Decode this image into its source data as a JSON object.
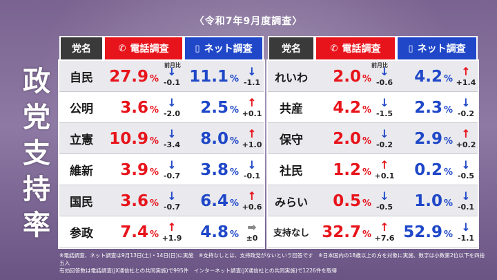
{
  "survey_date": "〈令和7年9月度調査〉",
  "title_chars": [
    "政",
    "党",
    "支",
    "持",
    "率"
  ],
  "headers": {
    "party": "党名",
    "phone": "電話調査",
    "net": "ネット調査"
  },
  "prev_month_label": "前月比",
  "left": [
    {
      "name": "自民",
      "phone": "27.9",
      "phone_dir": "down",
      "phone_delta": "-0.1",
      "net": "11.1",
      "net_dir": "down",
      "net_delta": "-1.1"
    },
    {
      "name": "公明",
      "phone": "3.6",
      "phone_dir": "down",
      "phone_delta": "-2.0",
      "net": "2.5",
      "net_dir": "up",
      "net_delta": "+0.1"
    },
    {
      "name": "立憲",
      "phone": "10.9",
      "phone_dir": "down",
      "phone_delta": "-3.4",
      "net": "8.0",
      "net_dir": "up",
      "net_delta": "+1.0"
    },
    {
      "name": "維新",
      "phone": "3.9",
      "phone_dir": "down",
      "phone_delta": "-0.7",
      "net": "3.8",
      "net_dir": "down",
      "net_delta": "-0.1"
    },
    {
      "name": "国民",
      "phone": "3.6",
      "phone_dir": "down",
      "phone_delta": "-0.7",
      "net": "6.4",
      "net_dir": "up",
      "net_delta": "+0.6"
    },
    {
      "name": "参政",
      "phone": "7.4",
      "phone_dir": "up",
      "phone_delta": "+1.9",
      "net": "4.8",
      "net_dir": "flat",
      "net_delta": "±0"
    }
  ],
  "right": [
    {
      "name": "れいわ",
      "phone": "2.0",
      "phone_dir": "down",
      "phone_delta": "-0.6",
      "net": "4.2",
      "net_dir": "up",
      "net_delta": "+1.4"
    },
    {
      "name": "共産",
      "phone": "4.2",
      "phone_dir": "down",
      "phone_delta": "-1.5",
      "net": "2.3",
      "net_dir": "down",
      "net_delta": "-0.2"
    },
    {
      "name": "保守",
      "phone": "2.0",
      "phone_dir": "down",
      "phone_delta": "-0.2",
      "net": "2.9",
      "net_dir": "up",
      "net_delta": "+0.2"
    },
    {
      "name": "社民",
      "phone": "1.2",
      "phone_dir": "up",
      "phone_delta": "+0.1",
      "net": "0.2",
      "net_dir": "down",
      "net_delta": "-0.5"
    },
    {
      "name": "みらい",
      "phone": "0.5",
      "phone_dir": "down",
      "phone_delta": "-0.5",
      "net": "1.0",
      "net_dir": "down",
      "net_delta": "-0.1"
    },
    {
      "name": "支持なし",
      "phone": "32.7",
      "phone_dir": "up",
      "phone_delta": "+7.6",
      "net": "52.9",
      "net_dir": "down",
      "net_delta": "-1.1"
    }
  ],
  "notes": [
    "※電話調査、ネット調査は9月13日(土)・14日(日)に実施　※支持なしとは、支持政党がないという回答です　※日本国内の18歳以上の方を対象に実施、数字は小数第2位以下を四捨五入",
    "有効回答数は電話調査(JX通信社との共同実施)で995件　インターネット調査(JX通信社との共同実施)で1226件を取得"
  ],
  "colors": {
    "phone": "#e8141b",
    "net": "#1f47c8",
    "party_header": "#3a3a3a",
    "background": "#7a6390"
  }
}
